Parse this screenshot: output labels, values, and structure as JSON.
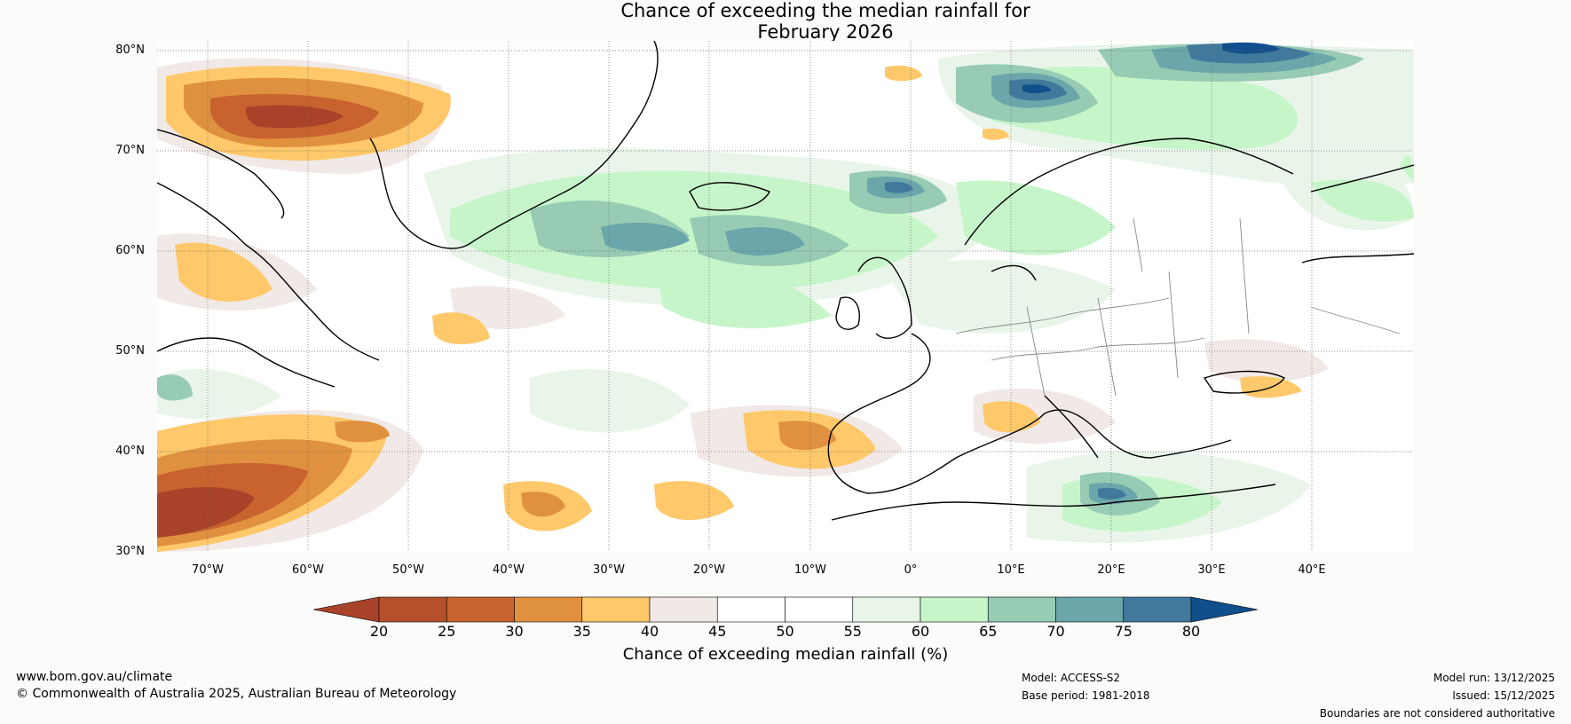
{
  "title": {
    "line1": "Chance of exceeding the median rainfall for",
    "line2": "February 2026"
  },
  "map": {
    "latitude_labels": [
      "80°N",
      "70°N",
      "60°N",
      "50°N",
      "40°N",
      "30°N"
    ],
    "longitude_labels": [
      "70°W",
      "60°W",
      "50°W",
      "40°W",
      "30°W",
      "20°W",
      "10°W",
      "0°",
      "10°E",
      "20°E",
      "30°E",
      "40°E"
    ]
  },
  "colorbar": {
    "ticks": [
      "20",
      "25",
      "30",
      "35",
      "40",
      "45",
      "50",
      "55",
      "60",
      "65",
      "70",
      "75",
      "80"
    ],
    "colors": [
      "#a8432a",
      "#b4502b",
      "#c8622f",
      "#e0913f",
      "#ffc86a",
      "#f0e9e6",
      "#ffffff",
      "#ffffff",
      "#eaf5ea",
      "#c6f5c9",
      "#97cbb4",
      "#6aa6aa",
      "#41799c",
      "#104f8c"
    ],
    "label": "Chance of exceeding median rainfall (%)"
  },
  "footer": {
    "url": "www.bom.gov.au/climate",
    "copyright": "© Commonwealth of Australia 2025, Australian Bureau of Meteorology",
    "model": "Model: ACCESS-S2",
    "base_period": "Base period: 1981-2018",
    "model_run": "Model run: 13/12/2025",
    "issued": "Issued: 15/12/2025",
    "disclaimer": "Boundaries are not considered authoritative"
  }
}
